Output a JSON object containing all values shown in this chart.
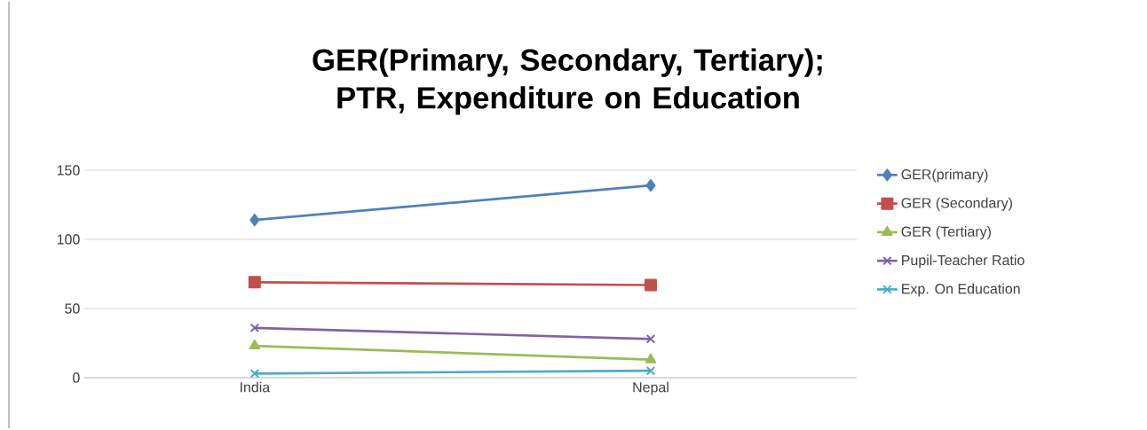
{
  "chart_data": {
    "type": "line",
    "title": "GER(Primary, Secondary, Tertiary); PTR, Expenditure on Education",
    "categories": [
      "India",
      "Nepal"
    ],
    "series": [
      {
        "name": "GER(primary)",
        "color": "#4f81bd",
        "values": [
          114,
          139
        ],
        "marker": "diamond"
      },
      {
        "name": "GER (Secondary)",
        "color": "#c0504d",
        "values": [
          69,
          67
        ],
        "marker": "square"
      },
      {
        "name": "GER (Tertiary)",
        "color": "#9bbb59",
        "values": [
          23,
          13
        ],
        "marker": "triangle"
      },
      {
        "name": "Pupil-Teacher Ratio",
        "color": "#8064a2",
        "values": [
          36,
          28
        ],
        "marker": "cross"
      },
      {
        "name": "Exp. On Education",
        "color": "#4bacc6",
        "values": [
          3,
          5
        ],
        "marker": "cross"
      }
    ],
    "ylim": [
      0,
      150
    ],
    "yticks": [
      0,
      50,
      100,
      150
    ],
    "grid": "y",
    "legend": "right"
  }
}
